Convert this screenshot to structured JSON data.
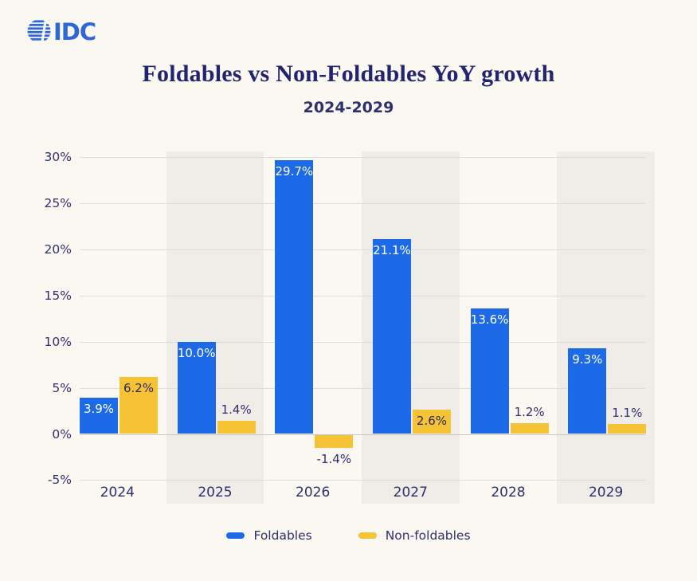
{
  "logo": {
    "text": "IDC"
  },
  "header": {
    "title": "Foldables vs Non-Foldables YoY growth",
    "subtitle": "2024-2029"
  },
  "chart_data": {
    "type": "bar",
    "title": "Foldables vs Non-Foldables YoY growth",
    "subtitle": "2024-2029",
    "categories": [
      "2024",
      "2025",
      "2026",
      "2027",
      "2028",
      "2029"
    ],
    "series": [
      {
        "name": "Foldables",
        "color": "#1c6ae8",
        "values": [
          3.9,
          10.0,
          29.7,
          21.1,
          13.6,
          9.3
        ],
        "labels": [
          "3.9%",
          "10.0%",
          "29.7%",
          "21.1%",
          "13.6%",
          "9.3%"
        ]
      },
      {
        "name": "Non-foldables",
        "color": "#f7c336",
        "values": [
          6.2,
          1.4,
          -1.4,
          2.6,
          1.2,
          1.1
        ],
        "labels": [
          "6.2%",
          "1.4%",
          "-1.4%",
          "2.6%",
          "1.2%",
          "1.1%"
        ]
      }
    ],
    "ylim": [
      -5,
      30
    ],
    "yticks": [
      {
        "value": 30,
        "label": "30%"
      },
      {
        "value": 25,
        "label": "25%"
      },
      {
        "value": 20,
        "label": "20%"
      },
      {
        "value": 15,
        "label": "15%"
      },
      {
        "value": 10,
        "label": "10%"
      },
      {
        "value": 5,
        "label": "5%"
      },
      {
        "value": 0,
        "label": "0%"
      },
      {
        "value": -5,
        "label": "-5%"
      }
    ],
    "grid": true,
    "legend_position": "bottom",
    "shaded_columns": [
      "2025",
      "2027",
      "2029"
    ]
  },
  "legend": {
    "items": [
      {
        "label": "Foldables",
        "color": "#1c6ae8"
      },
      {
        "label": "Non-foldables",
        "color": "#f7c336"
      }
    ]
  },
  "colors": {
    "background": "#fbf7f1",
    "band": "#f0ece7",
    "gridline": "#dbd9e3",
    "zero_line": "#c7c5d2",
    "navy_text": "#2e2f6e",
    "title": "#232470",
    "label_on_blue": "#ffffff",
    "label_on_yellow": "#28285f",
    "logo_blue": "#2c68da"
  }
}
